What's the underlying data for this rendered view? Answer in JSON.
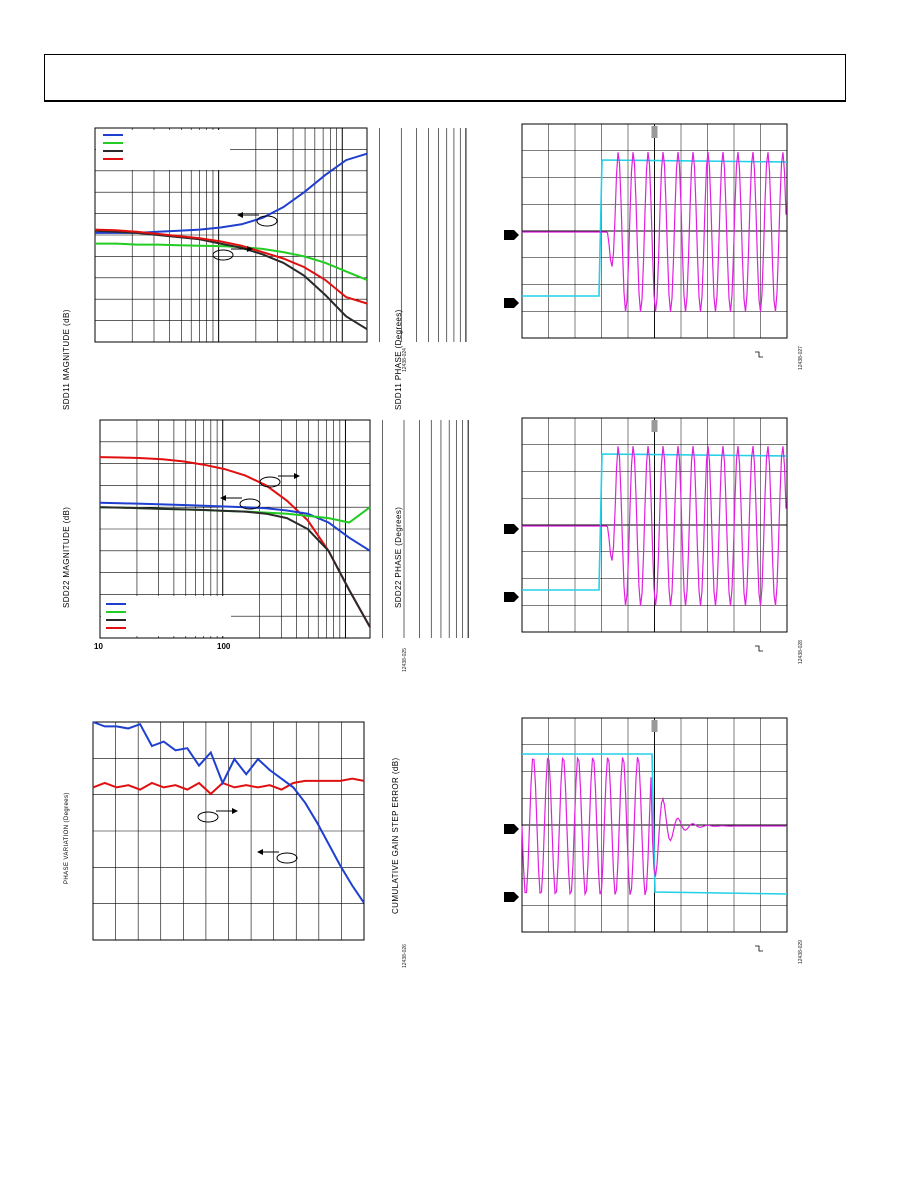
{
  "colors": {
    "blue": "#1f3fcf",
    "green": "#22cc22",
    "black": "#2a2a2a",
    "red": "#e01010",
    "cyan": "#22d0e8",
    "magenta": "#e020e0"
  },
  "chart_data": [
    {
      "type": "line",
      "ylabel_left": "SDD11 MAGNITUDE (dB)",
      "ylabel_right": "SDD11 PHASE (Degrees)",
      "figure_id": "12438-024",
      "x_scale": "log",
      "series": [
        {
          "color": "blue",
          "y": [
            0.49,
            0.49,
            0.49,
            0.485,
            0.48,
            0.475,
            0.465,
            0.45,
            0.42,
            0.37,
            0.3,
            0.22,
            0.15,
            0.12
          ]
        },
        {
          "color": "green",
          "y": [
            0.54,
            0.54,
            0.545,
            0.545,
            0.548,
            0.55,
            0.552,
            0.556,
            0.565,
            0.58,
            0.6,
            0.63,
            0.67,
            0.71
          ]
        },
        {
          "color": "black",
          "y": [
            0.48,
            0.485,
            0.49,
            0.5,
            0.51,
            0.52,
            0.54,
            0.56,
            0.59,
            0.63,
            0.69,
            0.78,
            0.88,
            0.94
          ]
        },
        {
          "color": "red",
          "y": [
            0.475,
            0.478,
            0.485,
            0.495,
            0.505,
            0.515,
            0.53,
            0.55,
            0.58,
            0.61,
            0.65,
            0.71,
            0.79,
            0.82
          ]
        }
      ]
    },
    {
      "type": "line",
      "ylabel_left": "SDD22 MAGNITUDE (dB)",
      "ylabel_right": "SDD22 PHASE (Degrees)",
      "figure_id": "12438-025",
      "x_scale": "log",
      "x_ticks": [
        "10",
        "100"
      ],
      "series": [
        {
          "color": "red",
          "y": [
            0.17,
            0.172,
            0.175,
            0.18,
            0.19,
            0.205,
            0.225,
            0.255,
            0.3,
            0.37,
            0.46,
            0.6,
            0.78,
            0.95
          ]
        },
        {
          "color": "blue",
          "y": [
            0.38,
            0.382,
            0.384,
            0.387,
            0.39,
            0.393,
            0.397,
            0.4,
            0.405,
            0.415,
            0.43,
            0.47,
            0.54,
            0.6
          ]
        },
        {
          "color": "green",
          "y": [
            0.4,
            0.402,
            0.405,
            0.408,
            0.41,
            0.413,
            0.417,
            0.42,
            0.425,
            0.43,
            0.44,
            0.45,
            0.47,
            0.4
          ]
        },
        {
          "color": "black",
          "y": [
            0.4,
            0.402,
            0.405,
            0.408,
            0.41,
            0.413,
            0.417,
            0.42,
            0.43,
            0.45,
            0.5,
            0.6,
            0.78,
            0.95
          ]
        }
      ]
    },
    {
      "type": "line",
      "ylabel_left": "PHASE VARIATION (Degrees)",
      "ylabel_right": "CUMULATIVE GAIN STEP ERROR (dB)",
      "figure_id": "12438-026",
      "series": [
        {
          "color": "red",
          "y": [
            0.3,
            0.28,
            0.3,
            0.29,
            0.31,
            0.28,
            0.3,
            0.29,
            0.31,
            0.28,
            0.33,
            0.28,
            0.3,
            0.29,
            0.3,
            0.29,
            0.31,
            0.28,
            0.27,
            0.27,
            0.27,
            0.27,
            0.26,
            0.27
          ]
        },
        {
          "color": "blue",
          "y": [
            0.0,
            0.02,
            0.02,
            0.03,
            0.01,
            0.11,
            0.09,
            0.13,
            0.12,
            0.2,
            0.14,
            0.28,
            0.17,
            0.24,
            0.17,
            0.22,
            0.26,
            0.3,
            0.37,
            0.46,
            0.56,
            0.66,
            0.75,
            0.83
          ]
        }
      ]
    },
    {
      "type": "line",
      "figure_id": "12438-027",
      "series": [
        {
          "color": "cyan",
          "name": "step"
        },
        {
          "color": "magenta",
          "name": "oscillation"
        }
      ]
    },
    {
      "type": "line",
      "figure_id": "12438-028",
      "series": [
        {
          "color": "cyan",
          "name": "step"
        },
        {
          "color": "magenta",
          "name": "oscillation"
        }
      ]
    },
    {
      "type": "line",
      "figure_id": "12438-029",
      "series": [
        {
          "color": "cyan",
          "name": "step"
        },
        {
          "color": "magenta",
          "name": "oscillation"
        }
      ]
    }
  ]
}
